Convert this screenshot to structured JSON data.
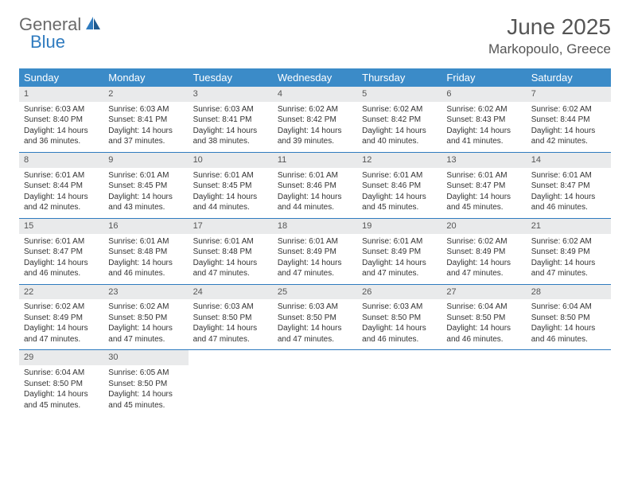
{
  "logo": {
    "part1": "General",
    "part2": "Blue"
  },
  "title": "June 2025",
  "location": "Markopoulo, Greece",
  "day_headers": [
    "Sunday",
    "Monday",
    "Tuesday",
    "Wednesday",
    "Thursday",
    "Friday",
    "Saturday"
  ],
  "colors": {
    "header_bg": "#3b8bc8",
    "header_text": "#ffffff",
    "daynum_bg": "#e9eaeb",
    "week_border": "#2f7bbf",
    "title_color": "#555555",
    "logo_gray": "#6a6a6a",
    "logo_blue": "#2f7bbf"
  },
  "typography": {
    "title_fontsize": 28,
    "location_fontsize": 17,
    "header_fontsize": 13,
    "cell_fontsize": 10
  },
  "weeks": [
    [
      {
        "day": "1",
        "sunrise": "Sunrise: 6:03 AM",
        "sunset": "Sunset: 8:40 PM",
        "daylight1": "Daylight: 14 hours",
        "daylight2": "and 36 minutes."
      },
      {
        "day": "2",
        "sunrise": "Sunrise: 6:03 AM",
        "sunset": "Sunset: 8:41 PM",
        "daylight1": "Daylight: 14 hours",
        "daylight2": "and 37 minutes."
      },
      {
        "day": "3",
        "sunrise": "Sunrise: 6:03 AM",
        "sunset": "Sunset: 8:41 PM",
        "daylight1": "Daylight: 14 hours",
        "daylight2": "and 38 minutes."
      },
      {
        "day": "4",
        "sunrise": "Sunrise: 6:02 AM",
        "sunset": "Sunset: 8:42 PM",
        "daylight1": "Daylight: 14 hours",
        "daylight2": "and 39 minutes."
      },
      {
        "day": "5",
        "sunrise": "Sunrise: 6:02 AM",
        "sunset": "Sunset: 8:42 PM",
        "daylight1": "Daylight: 14 hours",
        "daylight2": "and 40 minutes."
      },
      {
        "day": "6",
        "sunrise": "Sunrise: 6:02 AM",
        "sunset": "Sunset: 8:43 PM",
        "daylight1": "Daylight: 14 hours",
        "daylight2": "and 41 minutes."
      },
      {
        "day": "7",
        "sunrise": "Sunrise: 6:02 AM",
        "sunset": "Sunset: 8:44 PM",
        "daylight1": "Daylight: 14 hours",
        "daylight2": "and 42 minutes."
      }
    ],
    [
      {
        "day": "8",
        "sunrise": "Sunrise: 6:01 AM",
        "sunset": "Sunset: 8:44 PM",
        "daylight1": "Daylight: 14 hours",
        "daylight2": "and 42 minutes."
      },
      {
        "day": "9",
        "sunrise": "Sunrise: 6:01 AM",
        "sunset": "Sunset: 8:45 PM",
        "daylight1": "Daylight: 14 hours",
        "daylight2": "and 43 minutes."
      },
      {
        "day": "10",
        "sunrise": "Sunrise: 6:01 AM",
        "sunset": "Sunset: 8:45 PM",
        "daylight1": "Daylight: 14 hours",
        "daylight2": "and 44 minutes."
      },
      {
        "day": "11",
        "sunrise": "Sunrise: 6:01 AM",
        "sunset": "Sunset: 8:46 PM",
        "daylight1": "Daylight: 14 hours",
        "daylight2": "and 44 minutes."
      },
      {
        "day": "12",
        "sunrise": "Sunrise: 6:01 AM",
        "sunset": "Sunset: 8:46 PM",
        "daylight1": "Daylight: 14 hours",
        "daylight2": "and 45 minutes."
      },
      {
        "day": "13",
        "sunrise": "Sunrise: 6:01 AM",
        "sunset": "Sunset: 8:47 PM",
        "daylight1": "Daylight: 14 hours",
        "daylight2": "and 45 minutes."
      },
      {
        "day": "14",
        "sunrise": "Sunrise: 6:01 AM",
        "sunset": "Sunset: 8:47 PM",
        "daylight1": "Daylight: 14 hours",
        "daylight2": "and 46 minutes."
      }
    ],
    [
      {
        "day": "15",
        "sunrise": "Sunrise: 6:01 AM",
        "sunset": "Sunset: 8:47 PM",
        "daylight1": "Daylight: 14 hours",
        "daylight2": "and 46 minutes."
      },
      {
        "day": "16",
        "sunrise": "Sunrise: 6:01 AM",
        "sunset": "Sunset: 8:48 PM",
        "daylight1": "Daylight: 14 hours",
        "daylight2": "and 46 minutes."
      },
      {
        "day": "17",
        "sunrise": "Sunrise: 6:01 AM",
        "sunset": "Sunset: 8:48 PM",
        "daylight1": "Daylight: 14 hours",
        "daylight2": "and 47 minutes."
      },
      {
        "day": "18",
        "sunrise": "Sunrise: 6:01 AM",
        "sunset": "Sunset: 8:49 PM",
        "daylight1": "Daylight: 14 hours",
        "daylight2": "and 47 minutes."
      },
      {
        "day": "19",
        "sunrise": "Sunrise: 6:01 AM",
        "sunset": "Sunset: 8:49 PM",
        "daylight1": "Daylight: 14 hours",
        "daylight2": "and 47 minutes."
      },
      {
        "day": "20",
        "sunrise": "Sunrise: 6:02 AM",
        "sunset": "Sunset: 8:49 PM",
        "daylight1": "Daylight: 14 hours",
        "daylight2": "and 47 minutes."
      },
      {
        "day": "21",
        "sunrise": "Sunrise: 6:02 AM",
        "sunset": "Sunset: 8:49 PM",
        "daylight1": "Daylight: 14 hours",
        "daylight2": "and 47 minutes."
      }
    ],
    [
      {
        "day": "22",
        "sunrise": "Sunrise: 6:02 AM",
        "sunset": "Sunset: 8:49 PM",
        "daylight1": "Daylight: 14 hours",
        "daylight2": "and 47 minutes."
      },
      {
        "day": "23",
        "sunrise": "Sunrise: 6:02 AM",
        "sunset": "Sunset: 8:50 PM",
        "daylight1": "Daylight: 14 hours",
        "daylight2": "and 47 minutes."
      },
      {
        "day": "24",
        "sunrise": "Sunrise: 6:03 AM",
        "sunset": "Sunset: 8:50 PM",
        "daylight1": "Daylight: 14 hours",
        "daylight2": "and 47 minutes."
      },
      {
        "day": "25",
        "sunrise": "Sunrise: 6:03 AM",
        "sunset": "Sunset: 8:50 PM",
        "daylight1": "Daylight: 14 hours",
        "daylight2": "and 47 minutes."
      },
      {
        "day": "26",
        "sunrise": "Sunrise: 6:03 AM",
        "sunset": "Sunset: 8:50 PM",
        "daylight1": "Daylight: 14 hours",
        "daylight2": "and 46 minutes."
      },
      {
        "day": "27",
        "sunrise": "Sunrise: 6:04 AM",
        "sunset": "Sunset: 8:50 PM",
        "daylight1": "Daylight: 14 hours",
        "daylight2": "and 46 minutes."
      },
      {
        "day": "28",
        "sunrise": "Sunrise: 6:04 AM",
        "sunset": "Sunset: 8:50 PM",
        "daylight1": "Daylight: 14 hours",
        "daylight2": "and 46 minutes."
      }
    ],
    [
      {
        "day": "29",
        "sunrise": "Sunrise: 6:04 AM",
        "sunset": "Sunset: 8:50 PM",
        "daylight1": "Daylight: 14 hours",
        "daylight2": "and 45 minutes."
      },
      {
        "day": "30",
        "sunrise": "Sunrise: 6:05 AM",
        "sunset": "Sunset: 8:50 PM",
        "daylight1": "Daylight: 14 hours",
        "daylight2": "and 45 minutes."
      },
      null,
      null,
      null,
      null,
      null
    ]
  ]
}
